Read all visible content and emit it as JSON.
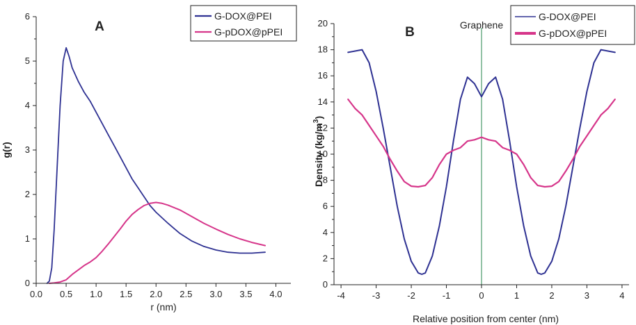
{
  "chart_data": [
    {
      "type": "line",
      "panel_label": "A",
      "xlabel": "r (nm)",
      "ylabel": "g(r)",
      "xlim": [
        0,
        4.25
      ],
      "ylim": [
        0,
        6
      ],
      "x_ticks": [
        "0.0",
        "0.5",
        "1.0",
        "1.5",
        "2.0",
        "2.5",
        "3.0",
        "3.5",
        "4.0"
      ],
      "y_ticks": [
        "0",
        "1",
        "2",
        "3",
        "4",
        "5",
        "6"
      ],
      "legend_position": "top-right",
      "grid": false,
      "series": [
        {
          "name": "G-DOX@PEI",
          "color": "#2e3192",
          "x": [
            0.18,
            0.22,
            0.26,
            0.3,
            0.35,
            0.4,
            0.45,
            0.5,
            0.55,
            0.6,
            0.7,
            0.8,
            0.9,
            1.0,
            1.1,
            1.2,
            1.3,
            1.4,
            1.5,
            1.6,
            1.7,
            1.8,
            1.9,
            2.0,
            2.2,
            2.4,
            2.6,
            2.8,
            3.0,
            3.2,
            3.4,
            3.6,
            3.82
          ],
          "values": [
            0.0,
            0.05,
            0.35,
            1.2,
            2.6,
            4.0,
            5.0,
            5.3,
            5.1,
            4.85,
            4.55,
            4.3,
            4.1,
            3.85,
            3.6,
            3.35,
            3.1,
            2.85,
            2.6,
            2.35,
            2.15,
            1.95,
            1.75,
            1.6,
            1.35,
            1.12,
            0.95,
            0.83,
            0.75,
            0.7,
            0.68,
            0.68,
            0.7
          ]
        },
        {
          "name": "G-pDOX@pPEI",
          "color": "#d6358a",
          "x": [
            0.22,
            0.3,
            0.4,
            0.5,
            0.6,
            0.7,
            0.8,
            0.9,
            1.0,
            1.1,
            1.2,
            1.3,
            1.4,
            1.5,
            1.6,
            1.7,
            1.8,
            1.9,
            2.0,
            2.1,
            2.2,
            2.4,
            2.6,
            2.8,
            3.0,
            3.2,
            3.4,
            3.6,
            3.82
          ],
          "values": [
            0.0,
            0.01,
            0.03,
            0.08,
            0.2,
            0.3,
            0.4,
            0.48,
            0.58,
            0.72,
            0.88,
            1.05,
            1.22,
            1.4,
            1.55,
            1.66,
            1.75,
            1.8,
            1.82,
            1.8,
            1.76,
            1.65,
            1.5,
            1.35,
            1.22,
            1.1,
            1.0,
            0.92,
            0.85
          ]
        }
      ]
    },
    {
      "type": "line",
      "panel_label": "B",
      "xlabel": "Relative position from center (nm)",
      "ylabel": "Density (kg/m",
      "ylabel_sup": "3",
      "ylabel_end": ")",
      "annotation": "Graphene",
      "annotation_x": 0,
      "xlim": [
        -4.2,
        4.2
      ],
      "ylim": [
        0,
        20
      ],
      "x_ticks": [
        "-4",
        "-3",
        "-2",
        "-1",
        "0",
        "1",
        "2",
        "3",
        "4"
      ],
      "y_ticks": [
        "0",
        "2",
        "4",
        "6",
        "8",
        "10",
        "12",
        "14",
        "16",
        "18",
        "20"
      ],
      "legend_position": "top-right",
      "grid": false,
      "series": [
        {
          "name": "G-DOX@PEI",
          "color": "#2e3192",
          "x": [
            -3.8,
            -3.6,
            -3.4,
            -3.2,
            -3.0,
            -2.8,
            -2.6,
            -2.4,
            -2.2,
            -2.0,
            -1.8,
            -1.7,
            -1.6,
            -1.4,
            -1.2,
            -1.0,
            -0.8,
            -0.6,
            -0.4,
            -0.2,
            0.0,
            0.2,
            0.4,
            0.6,
            0.8,
            1.0,
            1.2,
            1.4,
            1.6,
            1.7,
            1.8,
            2.0,
            2.2,
            2.4,
            2.6,
            2.8,
            3.0,
            3.2,
            3.4,
            3.6,
            3.8
          ],
          "values": [
            17.8,
            17.9,
            18.0,
            17.0,
            14.8,
            12.0,
            9.0,
            6.0,
            3.5,
            1.8,
            0.9,
            0.8,
            0.9,
            2.2,
            4.5,
            7.5,
            11.0,
            14.2,
            15.9,
            15.4,
            14.4,
            15.4,
            15.9,
            14.2,
            11.0,
            7.5,
            4.5,
            2.2,
            0.9,
            0.8,
            0.9,
            1.8,
            3.5,
            6.0,
            9.0,
            12.0,
            14.8,
            17.0,
            18.0,
            17.9,
            17.8
          ]
        },
        {
          "name": "G-pDOX@pPEI",
          "color": "#d6358a",
          "x": [
            -3.8,
            -3.6,
            -3.4,
            -3.2,
            -3.0,
            -2.8,
            -2.6,
            -2.4,
            -2.2,
            -2.0,
            -1.8,
            -1.6,
            -1.4,
            -1.2,
            -1.0,
            -0.8,
            -0.6,
            -0.4,
            -0.2,
            0.0,
            0.2,
            0.4,
            0.6,
            0.8,
            1.0,
            1.2,
            1.4,
            1.6,
            1.8,
            2.0,
            2.2,
            2.4,
            2.6,
            2.8,
            3.0,
            3.2,
            3.4,
            3.6,
            3.8
          ],
          "values": [
            14.2,
            13.5,
            13.0,
            12.2,
            11.4,
            10.6,
            9.6,
            8.7,
            7.9,
            7.55,
            7.5,
            7.6,
            8.2,
            9.2,
            10.0,
            10.3,
            10.5,
            11.0,
            11.1,
            11.3,
            11.1,
            11.0,
            10.5,
            10.3,
            10.0,
            9.2,
            8.2,
            7.6,
            7.5,
            7.55,
            7.9,
            8.7,
            9.6,
            10.6,
            11.4,
            12.2,
            13.0,
            13.5,
            14.2
          ]
        }
      ]
    }
  ]
}
